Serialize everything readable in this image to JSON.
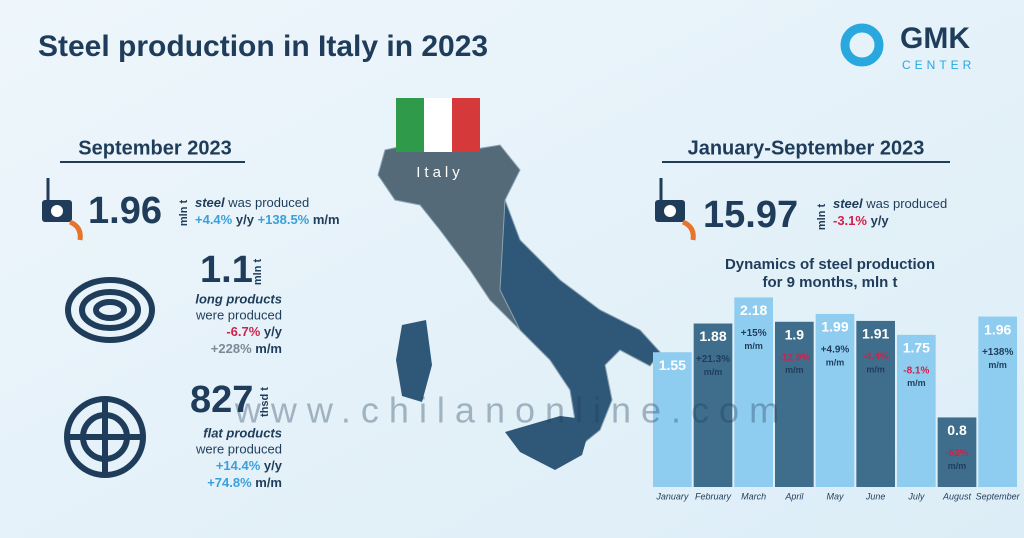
{
  "header": {
    "title": "Steel production in Italy in 2023",
    "logo_main": "GMK",
    "logo_sub": "CENTER"
  },
  "watermark": "www.chilanonline.com",
  "map_label": "Italy",
  "september": {
    "heading": "September 2023",
    "steel": {
      "value": 1.96,
      "unit": "mln t",
      "product": "steel",
      "verb": "was produced",
      "yy": "+4.4%",
      "yy_unit": "y/y",
      "mm": "+138.5%",
      "mm_unit": "m/m"
    },
    "long": {
      "value": 1.1,
      "unit": "mln t",
      "product": "long products",
      "verb": "were produced",
      "yy": "-6.7%",
      "yy_unit": "y/y",
      "mm": "+228%",
      "mm_unit": "m/m"
    },
    "flat": {
      "value": 827,
      "unit": "thsd t",
      "product": "flat products",
      "verb": "were produced",
      "yy": "+14.4%",
      "yy_unit": "y/y",
      "mm": "+74.8%",
      "mm_unit": "m/m"
    }
  },
  "ytd": {
    "heading": "January-September 2023",
    "value": 15.97,
    "unit": "mln t",
    "product": "steel",
    "verb": "was produced",
    "yy": "-3.1%",
    "yy_unit": "y/y"
  },
  "chart_data": {
    "type": "bar",
    "title": [
      "Dynamics of steel production",
      "for 9 months, mln t"
    ],
    "categories": [
      "January",
      "February",
      "March",
      "April",
      "May",
      "June",
      "July",
      "August",
      "September"
    ],
    "values": [
      1.55,
      1.88,
      2.18,
      1.9,
      1.99,
      1.91,
      1.75,
      0.8,
      1.96
    ],
    "changes": [
      null,
      "+21.3%",
      "+15%",
      "-12.9%",
      "+4.9%",
      "-4.4%",
      "-8.1%",
      "-53%",
      "+138%"
    ],
    "change_unit": "m/m",
    "colors": [
      "#8fcdf0",
      "#3f6d8c"
    ],
    "ylim": [
      0,
      2.3
    ]
  }
}
